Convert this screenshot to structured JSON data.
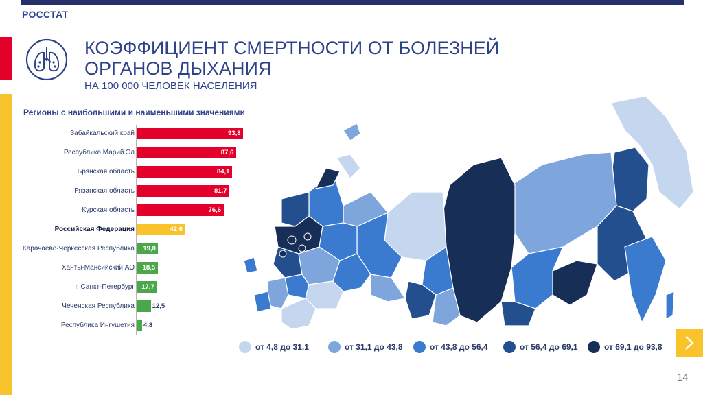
{
  "brand": "РОССТАТ",
  "title_line1": "КОЭФФИЦИЕНТ СМЕРТНОСТИ ОТ БОЛЕЗНЕЙ",
  "title_line2": "ОРГАНОВ ДЫХАНИЯ",
  "subtitle": "НА 100 000 ЧЕЛОВЕК НАСЕЛЕНИЯ",
  "icon": "lungs-icon",
  "page_number": "14",
  "colors": {
    "red": "#e3002b",
    "yellow": "#f9c32c",
    "green": "#4aa84a",
    "navy": "#26306b"
  },
  "chart_data": [
    {
      "type": "bar",
      "orientation": "horizontal",
      "title": "Регионы с наибольшими и наименьшими значениями",
      "categories": [
        "Забайкальский край",
        "Республика Марий Эл",
        "Брянская область",
        "Рязанская область",
        "Курская область",
        "Российская Федерация",
        "Карачаево-Черкесская Республика",
        "Ханты-Мансийский АО",
        "г. Санкт-Петербург",
        "Чеченская Республика",
        "Республика Ингушетия"
      ],
      "values": [
        93.8,
        87.6,
        84.1,
        81.7,
        76.6,
        42.6,
        19.0,
        18.5,
        17.7,
        12.5,
        4.8
      ],
      "value_labels": [
        "93,8",
        "87,6",
        "84,1",
        "81,7",
        "76,6",
        "42,6",
        "19,0",
        "18,5",
        "17,7",
        "12,5",
        "4,8"
      ],
      "bar_colors": [
        "#e3002b",
        "#e3002b",
        "#e3002b",
        "#e3002b",
        "#e3002b",
        "#f9c32c",
        "#4aa84a",
        "#4aa84a",
        "#4aa84a",
        "#4aa84a",
        "#4aa84a"
      ],
      "highlight_index": 5,
      "xlim": [
        0,
        93.8
      ]
    },
    {
      "type": "choropleth",
      "legend": [
        {
          "label": "от 4,8 до 31,1",
          "color": "#c5d7ee"
        },
        {
          "label": "от 31,1 до 43,8",
          "color": "#7ea6dc"
        },
        {
          "label": "от 43,8 до 56,4",
          "color": "#3a7bd0"
        },
        {
          "label": "от 56,4 до 69,1",
          "color": "#234f8f"
        },
        {
          "label": "от 69,1 до 93,8",
          "color": "#172e57"
        }
      ]
    }
  ]
}
